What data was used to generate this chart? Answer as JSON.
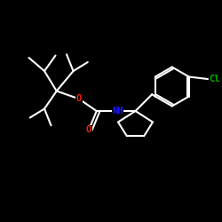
{
  "background_color": "#000000",
  "bond_color": "#ffffff",
  "bond_width": 1.5,
  "figsize": [
    2.5,
    2.5
  ],
  "dpi": 100,
  "atoms": {
    "N": {
      "color": "#1a1aff"
    },
    "O": {
      "color": "#ff2000"
    },
    "Cl": {
      "color": "#00bb00"
    },
    "C": {
      "color": "#ffffff"
    }
  },
  "font_size_atom": 7.5,
  "scale": 1.0
}
